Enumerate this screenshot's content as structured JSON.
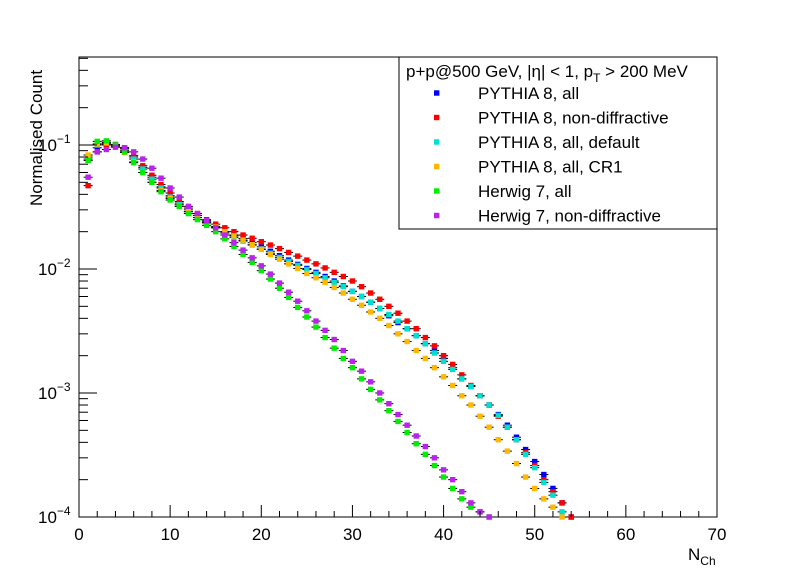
{
  "chart_data": {
    "type": "scatter",
    "title": "",
    "xlabel": "N",
    "xlabel_sub": "Ch",
    "ylabel": "Normalised Count",
    "xlim": [
      0,
      70
    ],
    "ylim": [
      0.0001,
      0.5
    ],
    "ylog": true,
    "grid": false,
    "legend_position": "top-right",
    "legend_header": {
      "main": "p+p@500 GeV, |η| < 1, p",
      "sub": "T",
      "rest": " > 200 MeV"
    },
    "x_ticks": [
      "0",
      "10",
      "20",
      "30",
      "40",
      "50",
      "60",
      "70"
    ],
    "y_ticks": [
      {
        "value": 0.1,
        "base": "10",
        "exp": "−1"
      },
      {
        "value": 0.01,
        "base": "10",
        "exp": "−2"
      },
      {
        "value": 0.001,
        "base": "10",
        "exp": "−3"
      },
      {
        "value": 0.0001,
        "base": "10",
        "exp": "−4"
      }
    ],
    "series": [
      {
        "name": "PYTHIA 8, all",
        "color": "#0000ff",
        "x": [
          1,
          2,
          3,
          4,
          5,
          6,
          7,
          8,
          9,
          10,
          11,
          12,
          13,
          14,
          15,
          16,
          17,
          18,
          19,
          20,
          21,
          22,
          23,
          24,
          25,
          26,
          27,
          28,
          29,
          30,
          31,
          32,
          33,
          34,
          35,
          36,
          37,
          38,
          39,
          40,
          41,
          42,
          43,
          44,
          45,
          46,
          47,
          48,
          49,
          50,
          51,
          52,
          53,
          54
        ],
        "y": [
          0.077,
          0.095,
          0.102,
          0.1,
          0.093,
          0.08,
          0.066,
          0.055,
          0.046,
          0.039,
          0.034,
          0.03,
          0.027,
          0.024,
          0.022,
          0.02,
          0.0188,
          0.0176,
          0.0163,
          0.0151,
          0.0139,
          0.0128,
          0.0118,
          0.0109,
          0.0101,
          0.0094,
          0.0087,
          0.008,
          0.0073,
          0.0066,
          0.006,
          0.0054,
          0.0048,
          0.0042,
          0.0037,
          0.0033,
          0.0029,
          0.0025,
          0.0022,
          0.0019,
          0.0016,
          0.0013,
          0.00113,
          0.00095,
          0.0008,
          0.00067,
          0.00055,
          0.00044,
          0.00035,
          0.00028,
          0.00022,
          0.00017,
          0.00013,
          0.0001
        ]
      },
      {
        "name": "PYTHIA 8, non-diffractive",
        "color": "#ff0000",
        "x": [
          1,
          2,
          3,
          4,
          5,
          6,
          7,
          8,
          9,
          10,
          11,
          12,
          13,
          14,
          15,
          16,
          17,
          18,
          19,
          20,
          21,
          22,
          23,
          24,
          25,
          26,
          27,
          28,
          29,
          30,
          31,
          32,
          33,
          34,
          35,
          36,
          37,
          38,
          39,
          40,
          41,
          42,
          43,
          44,
          45,
          46,
          47,
          48,
          49,
          50,
          51,
          52,
          53,
          54
        ],
        "y": [
          0.047,
          0.088,
          0.1,
          0.101,
          0.095,
          0.082,
          0.068,
          0.057,
          0.048,
          0.041,
          0.035,
          0.031,
          0.028,
          0.025,
          0.023,
          0.0215,
          0.02,
          0.0188,
          0.0177,
          0.0166,
          0.0156,
          0.0146,
          0.0136,
          0.0127,
          0.0118,
          0.011,
          0.0102,
          0.0094,
          0.0087,
          0.008,
          0.0072,
          0.0064,
          0.0057,
          0.005,
          0.0044,
          0.0038,
          0.0033,
          0.0028,
          0.0024,
          0.002,
          0.0017,
          0.0014,
          0.00115,
          0.00095,
          0.0008,
          0.00065,
          0.00053,
          0.00042,
          0.00033,
          0.00026,
          0.0002,
          0.00016,
          0.00013,
          0.0001
        ]
      },
      {
        "name": "PYTHIA 8, all, default",
        "color": "#00e0d0",
        "x": [
          1,
          2,
          3,
          4,
          5,
          6,
          7,
          8,
          9,
          10,
          11,
          12,
          13,
          14,
          15,
          16,
          17,
          18,
          19,
          20,
          21,
          22,
          23,
          24,
          25,
          26,
          27,
          28,
          29,
          30,
          31,
          32,
          33,
          34,
          35,
          36,
          37,
          38,
          39,
          40,
          41,
          42,
          43,
          44,
          45,
          46,
          47,
          48,
          49,
          50,
          51,
          52,
          53
        ],
        "y": [
          0.08,
          0.1,
          0.105,
          0.1,
          0.09,
          0.077,
          0.064,
          0.053,
          0.045,
          0.038,
          0.033,
          0.029,
          0.026,
          0.0235,
          0.0215,
          0.0195,
          0.018,
          0.0168,
          0.0156,
          0.0145,
          0.0134,
          0.0124,
          0.0115,
          0.0107,
          0.0099,
          0.0092,
          0.0085,
          0.0078,
          0.0072,
          0.0066,
          0.006,
          0.0054,
          0.0048,
          0.0043,
          0.0038,
          0.0033,
          0.0029,
          0.0025,
          0.0021,
          0.0018,
          0.00155,
          0.0013,
          0.00113,
          0.00095,
          0.0008,
          0.00066,
          0.00053,
          0.00042,
          0.00032,
          0.00025,
          0.00019,
          0.00015,
          0.00011
        ]
      },
      {
        "name": "PYTHIA 8, all, CR1",
        "color": "#ffb800",
        "x": [
          1,
          2,
          3,
          4,
          5,
          6,
          7,
          8,
          9,
          10,
          11,
          12,
          13,
          14,
          15,
          16,
          17,
          18,
          19,
          20,
          21,
          22,
          23,
          24,
          25,
          26,
          27,
          28,
          29,
          30,
          31,
          32,
          33,
          34,
          35,
          36,
          37,
          38,
          39,
          40,
          41,
          42,
          43,
          44,
          45,
          46,
          47,
          48,
          49,
          50,
          51,
          52,
          53
        ],
        "y": [
          0.083,
          0.102,
          0.104,
          0.098,
          0.087,
          0.073,
          0.06,
          0.05,
          0.043,
          0.037,
          0.032,
          0.029,
          0.026,
          0.0238,
          0.0218,
          0.02,
          0.0185,
          0.0171,
          0.0157,
          0.0144,
          0.0131,
          0.012,
          0.011,
          0.0101,
          0.0092,
          0.0085,
          0.0078,
          0.0071,
          0.0064,
          0.0057,
          0.0051,
          0.0045,
          0.004,
          0.0035,
          0.003,
          0.0026,
          0.0022,
          0.0019,
          0.0016,
          0.00135,
          0.00115,
          0.00095,
          0.0008,
          0.00065,
          0.00053,
          0.00042,
          0.00034,
          0.00027,
          0.00021,
          0.00017,
          0.00014,
          0.00012,
          0.0001
        ]
      },
      {
        "name": "Herwig 7, all",
        "color": "#00ee00",
        "x": [
          1,
          2,
          3,
          4,
          5,
          6,
          7,
          8,
          9,
          10,
          11,
          12,
          13,
          14,
          15,
          16,
          17,
          18,
          19,
          20,
          21,
          22,
          23,
          24,
          25,
          26,
          27,
          28,
          29,
          30,
          31,
          32,
          33,
          34,
          35,
          36,
          37,
          38,
          39,
          40,
          41,
          42,
          43,
          44,
          45
        ],
        "y": [
          0.075,
          0.107,
          0.108,
          0.1,
          0.088,
          0.072,
          0.06,
          0.05,
          0.042,
          0.036,
          0.032,
          0.028,
          0.025,
          0.0225,
          0.02,
          0.0175,
          0.0152,
          0.0131,
          0.0113,
          0.0097,
          0.0083,
          0.007,
          0.0059,
          0.0049,
          0.0041,
          0.0034,
          0.0028,
          0.0023,
          0.0019,
          0.0016,
          0.0013,
          0.00107,
          0.00088,
          0.00072,
          0.00059,
          0.00048,
          0.00039,
          0.00032,
          0.00026,
          0.00021,
          0.00017,
          0.00014,
          0.00012,
          0.00011,
          0.0001
        ]
      },
      {
        "name": "Herwig 7, non-diffractive",
        "color": "#bb22ee",
        "x": [
          1,
          2,
          3,
          4,
          5,
          6,
          7,
          8,
          9,
          10,
          11,
          12,
          13,
          14,
          15,
          16,
          17,
          18,
          19,
          20,
          21,
          22,
          23,
          24,
          25,
          26,
          27,
          28,
          29,
          30,
          31,
          32,
          33,
          34,
          35,
          36,
          37,
          38,
          39,
          40,
          41,
          42,
          43,
          44,
          45
        ],
        "y": [
          0.055,
          0.088,
          0.092,
          0.096,
          0.095,
          0.088,
          0.077,
          0.065,
          0.054,
          0.045,
          0.038,
          0.032,
          0.028,
          0.0245,
          0.0215,
          0.0188,
          0.0163,
          0.0142,
          0.0123,
          0.0106,
          0.0091,
          0.0077,
          0.0065,
          0.0055,
          0.0046,
          0.0038,
          0.0032,
          0.0027,
          0.0022,
          0.0018,
          0.0015,
          0.00123,
          0.001,
          0.00082,
          0.00067,
          0.00055,
          0.00045,
          0.00037,
          0.0003,
          0.00024,
          0.0002,
          0.00016,
          0.00013,
          0.00011,
          0.0001
        ]
      }
    ]
  }
}
